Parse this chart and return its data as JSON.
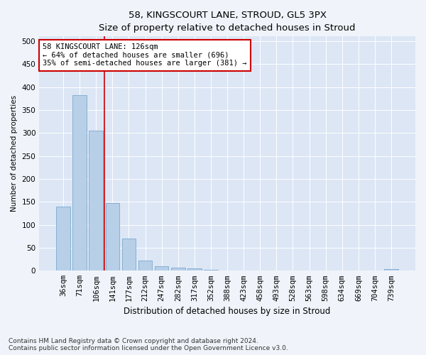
{
  "title1": "58, KINGSCOURT LANE, STROUD, GL5 3PX",
  "title2": "Size of property relative to detached houses in Stroud",
  "xlabel": "Distribution of detached houses by size in Stroud",
  "ylabel": "Number of detached properties",
  "bar_color": "#b8cfe8",
  "bar_edge_color": "#7aaad0",
  "vline_color": "#cc0000",
  "vline_x": 2.5,
  "categories": [
    "36sqm",
    "71sqm",
    "106sqm",
    "141sqm",
    "177sqm",
    "212sqm",
    "247sqm",
    "282sqm",
    "317sqm",
    "352sqm",
    "388sqm",
    "423sqm",
    "458sqm",
    "493sqm",
    "528sqm",
    "563sqm",
    "598sqm",
    "634sqm",
    "669sqm",
    "704sqm",
    "739sqm"
  ],
  "values": [
    140,
    383,
    305,
    148,
    70,
    22,
    10,
    7,
    5,
    2,
    0,
    0,
    0,
    0,
    0,
    0,
    0,
    0,
    0,
    0,
    4
  ],
  "ylim": [
    0,
    510
  ],
  "yticks": [
    0,
    50,
    100,
    150,
    200,
    250,
    300,
    350,
    400,
    450,
    500
  ],
  "annotation_title": "58 KINGSCOURT LANE: 126sqm",
  "annotation_line1": "← 64% of detached houses are smaller (696)",
  "annotation_line2": "35% of semi-detached houses are larger (381) →",
  "annotation_box_facecolor": "#ffffff",
  "annotation_box_edgecolor": "#cc0000",
  "footnote1": "Contains HM Land Registry data © Crown copyright and database right 2024.",
  "footnote2": "Contains public sector information licensed under the Open Government Licence v3.0.",
  "fig_facecolor": "#f0f4fa",
  "plot_facecolor": "#dce6f5",
  "grid_color": "#ffffff",
  "title1_fontsize": 9.5,
  "title2_fontsize": 9.0,
  "xlabel_fontsize": 8.5,
  "ylabel_fontsize": 7.5,
  "tick_fontsize": 7.5,
  "annot_fontsize": 7.5,
  "footnote_fontsize": 6.5
}
